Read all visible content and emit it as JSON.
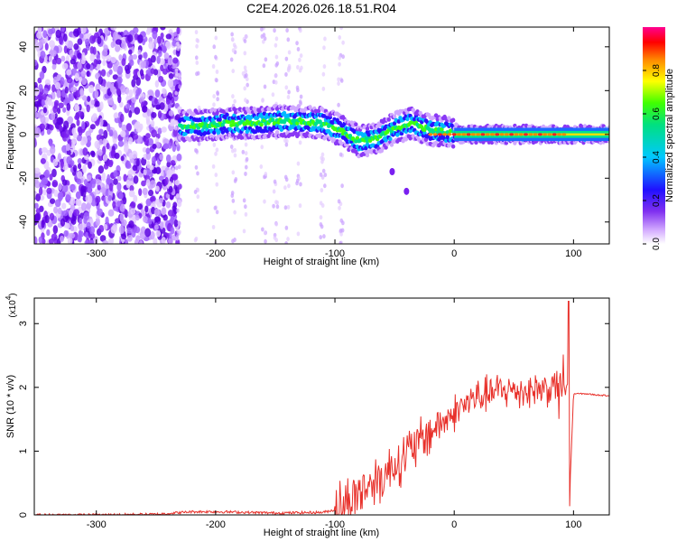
{
  "page_title": "C2E4.2026.026.18.51.R04",
  "chart_data": [
    {
      "type": "heatmap",
      "title": "C2E4.2026.026.18.51.R04",
      "xlabel": "Height of straight line (km)",
      "ylabel": "Frequency (Hz)",
      "xlim": [
        -352,
        130
      ],
      "ylim": [
        -50,
        49
      ],
      "xticks": [
        -300,
        -200,
        -100,
        0,
        100
      ],
      "xtick_labels": [
        "-300",
        "-200",
        "-100",
        "0",
        "100"
      ],
      "yticks": [
        -40,
        -20,
        0,
        20,
        40
      ],
      "ytick_labels": [
        "-40",
        "-20",
        "0",
        "20",
        "40"
      ],
      "colorbar": {
        "label": "Normalized spectral amplitude",
        "range": [
          0,
          1
        ],
        "ticks": [
          0.0,
          0.2,
          0.4,
          0.6,
          0.8
        ],
        "tick_labels": [
          "0.0",
          "0.2",
          "0.4",
          "0.6",
          "0.8"
        ],
        "colors": [
          "#ffffff",
          "#c080ff",
          "#6000e0",
          "#1010ff",
          "#00c0ff",
          "#00e070",
          "#40ff00",
          "#ffff00",
          "#ff8000",
          "#ff0000",
          "#ff0080"
        ]
      },
      "regions": [
        {
          "name": "noise",
          "x": [
            -352,
            -230
          ],
          "y": [
            -50,
            49
          ],
          "level": 0.2
        },
        {
          "name": "sparse-streaks",
          "x": [
            -230,
            -120
          ],
          "y": [
            -50,
            49
          ],
          "level": 0.05
        },
        {
          "name": "signal-band",
          "x": [
            -230,
            130
          ],
          "center_hz": [
            4,
            4,
            5,
            5,
            6,
            6,
            5,
            2,
            -3,
            -2,
            3,
            5,
            2,
            1,
            0,
            0,
            0,
            0
          ],
          "center_x": [
            -230,
            -210,
            -190,
            -170,
            -150,
            -130,
            -110,
            -95,
            -80,
            -65,
            -50,
            -35,
            -20,
            -5,
            10,
            40,
            80,
            130
          ],
          "level": 0.7
        }
      ]
    },
    {
      "type": "line",
      "xlabel": "Height of straight line (km)",
      "ylabel": "SNR (10 * v/v)",
      "y_scale_label": "(x10",
      "y_scale_exp": "4",
      "xlim": [
        -352,
        130
      ],
      "ylim": [
        0,
        3.4
      ],
      "xticks": [
        -300,
        -200,
        -100,
        0,
        100
      ],
      "xtick_labels": [
        "-300",
        "-200",
        "-100",
        "0",
        "100"
      ],
      "yticks": [
        0,
        1,
        2,
        3
      ],
      "ytick_labels": [
        "0",
        "1",
        "2",
        "3"
      ],
      "series": [
        {
          "name": "SNR",
          "color": "#e8302a",
          "x": [
            -352,
            -300,
            -250,
            -220,
            -200,
            -150,
            -110,
            -100,
            -90,
            -80,
            -70,
            -60,
            -50,
            -40,
            -30,
            -20,
            -10,
            0,
            10,
            20,
            30,
            40,
            50,
            60,
            70,
            80,
            90,
            95,
            97,
            100,
            110,
            120,
            130
          ],
          "y": [
            0.0,
            0.0,
            0.01,
            0.05,
            0.05,
            0.03,
            0.04,
            0.08,
            0.2,
            0.35,
            0.5,
            0.6,
            0.8,
            0.95,
            1.1,
            1.3,
            1.45,
            1.6,
            1.75,
            1.85,
            1.9,
            1.95,
            1.95,
            1.95,
            1.97,
            2.0,
            2.0,
            2.05,
            0.4,
            1.9,
            1.9,
            1.88,
            1.87
          ]
        }
      ]
    }
  ]
}
